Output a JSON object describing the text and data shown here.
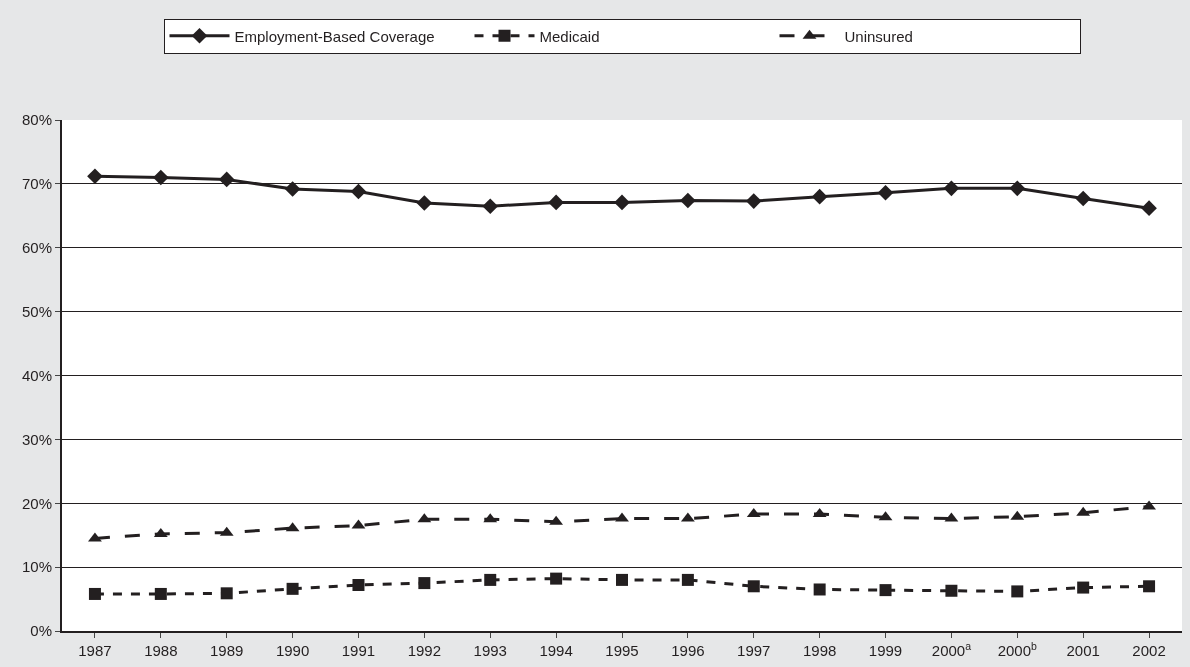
{
  "chart_data": {
    "type": "line",
    "categories": [
      "1987",
      "1988",
      "1989",
      "1990",
      "1991",
      "1992",
      "1993",
      "1994",
      "1995",
      "1996",
      "1997",
      "1998",
      "1999",
      "2000$^{a}$",
      "2000$^{b}$",
      "2001",
      "2002"
    ],
    "series": [
      {
        "name": "Employment-Based Coverage",
        "color": "#231f20",
        "marker": "diamond",
        "line_style": "solid",
        "values": [
          71.2,
          71.0,
          70.7,
          69.2,
          68.8,
          67.0,
          66.5,
          67.1,
          67.1,
          67.4,
          67.3,
          68.0,
          68.6,
          69.3,
          69.3,
          67.7,
          66.2
        ]
      },
      {
        "name": "Medicaid",
        "color": "#231f20",
        "marker": "square",
        "line_style": "dashed",
        "values": [
          5.8,
          5.8,
          5.9,
          6.6,
          7.2,
          7.5,
          8.0,
          8.2,
          8.0,
          8.0,
          7.0,
          6.5,
          6.4,
          6.3,
          6.2,
          6.8,
          7.0
        ]
      },
      {
        "name": "Uninsured",
        "color": "#231f20",
        "marker": "triangle",
        "line_style": "longdash",
        "values": [
          14.5,
          15.2,
          15.4,
          16.1,
          16.5,
          17.5,
          17.5,
          17.1,
          17.6,
          17.6,
          18.3,
          18.3,
          17.8,
          17.6,
          17.9,
          18.5,
          19.5
        ]
      }
    ],
    "ylim": [
      0,
      80
    ],
    "yticks": [
      {
        "value": 0,
        "label": "0%"
      },
      {
        "value": 10,
        "label": "10%"
      },
      {
        "value": 20,
        "label": "20%"
      },
      {
        "value": 30,
        "label": "30%"
      },
      {
        "value": 40,
        "label": "40%"
      },
      {
        "value": 50,
        "label": "50%"
      },
      {
        "value": 60,
        "label": "60%"
      },
      {
        "value": 70,
        "label": "70%"
      },
      {
        "value": 80,
        "label": "80%"
      }
    ],
    "grid": "y",
    "legend": "top"
  }
}
